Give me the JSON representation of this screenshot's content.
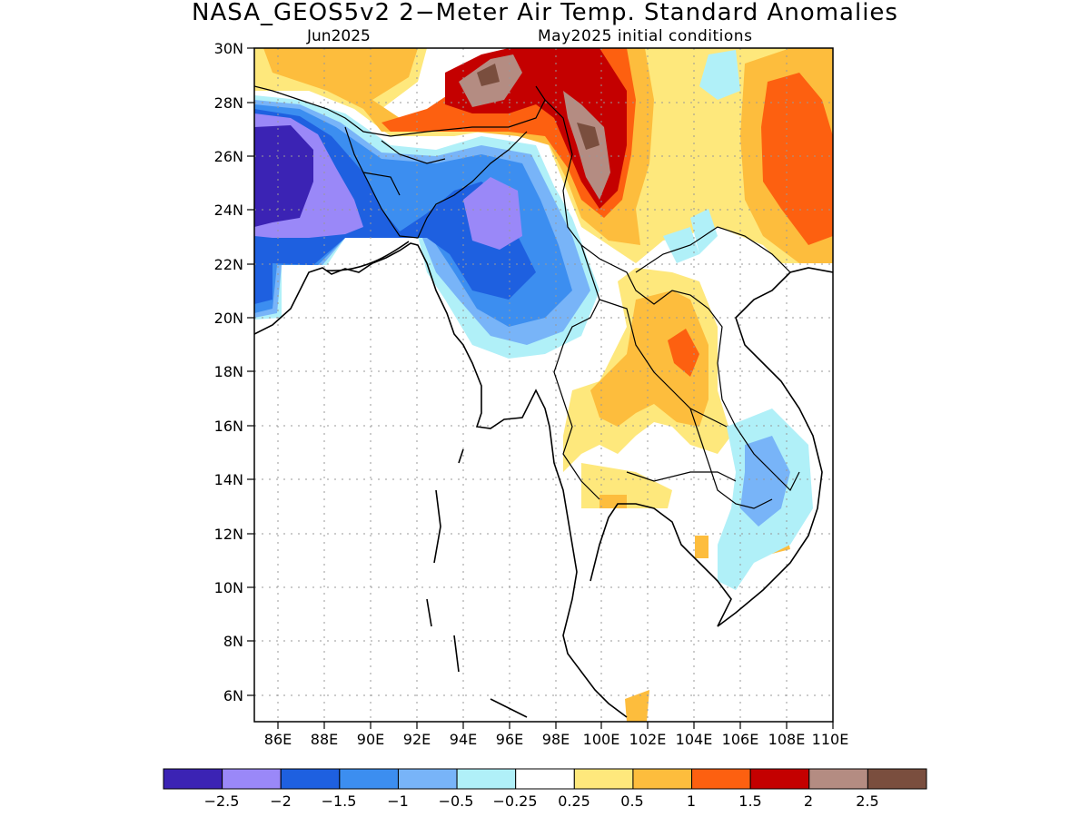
{
  "header": {
    "title": "NASA_GEOS5v2 2−Meter Air Temp. Standard Anomalies",
    "forecast_month": "Jun2025",
    "initial_conditions": "May2025 initial conditions"
  },
  "map": {
    "lon_range": [
      85,
      110
    ],
    "lat_range": [
      5,
      30
    ],
    "lon_ticks": [
      "86E",
      "88E",
      "90E",
      "92E",
      "94E",
      "96E",
      "98E",
      "100E",
      "102E",
      "104E",
      "106E",
      "108E",
      "110E"
    ],
    "lat_ticks": [
      "6N",
      "8N",
      "10N",
      "12N",
      "14N",
      "16N",
      "18N",
      "20N",
      "22N",
      "24N",
      "26N",
      "28N",
      "30N"
    ],
    "gridlines": "dotted"
  },
  "colorbar": {
    "colors": [
      "#3b23b4",
      "#9a88f8",
      "#1e60e0",
      "#3c8ef0",
      "#78b4f8",
      "#b0f0f8",
      "#ffffff",
      "#fee87c",
      "#fdbd3d",
      "#fd6010",
      "#c40000",
      "#b48c82",
      "#7a4e3e"
    ],
    "labels": [
      "−2.5",
      "−2",
      "−1.5",
      "−1",
      "−0.5",
      "−0.25",
      "0.25",
      "0.5",
      "1",
      "1.5",
      "2",
      "2.5"
    ]
  }
}
